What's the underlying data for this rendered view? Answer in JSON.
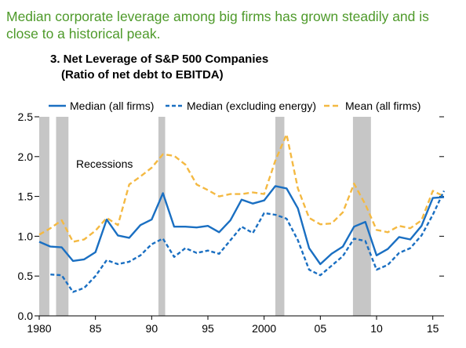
{
  "headline": "Median corporate leverage among big firms has grown steadily and is close to a historical peak.",
  "chart_data": {
    "type": "line",
    "title": "3. Net Leverage of S&P 500 Companies",
    "subtitle": "(Ratio of net debt to EBITDA)",
    "ylim": [
      0.0,
      2.5
    ],
    "y_ticks": [
      "0.0",
      "0.5",
      "1.0",
      "1.5",
      "2.0",
      "2.5"
    ],
    "xlim": [
      1980,
      2016
    ],
    "x_tick_values": [
      1980,
      1985,
      1990,
      1995,
      2000,
      2005,
      2010,
      2015
    ],
    "x_tick_labels": [
      "1980",
      "85",
      "90",
      "95",
      "2000",
      "05",
      "10",
      "15"
    ],
    "legend_position": "top",
    "annotation": "Recessions",
    "recessions": [
      [
        1980.0,
        1980.9
      ],
      [
        1981.5,
        1982.6
      ],
      [
        1990.6,
        1991.2
      ],
      [
        2001.0,
        2001.8
      ],
      [
        2007.9,
        2009.5
      ]
    ],
    "recession_color": "#c6c6c6",
    "series": [
      {
        "name": "Mean (all firms)",
        "color": "#f4b942",
        "dash": "long",
        "x": [
          1980,
          1981,
          1982,
          1983,
          1984,
          1985,
          1986,
          1987,
          1988,
          1989,
          1990,
          1991,
          1992,
          1993,
          1994,
          1995,
          1996,
          1997,
          1998,
          1999,
          2000,
          2001,
          2002,
          2003,
          2004,
          2005,
          2006,
          2007,
          2008,
          2009,
          2010,
          2011,
          2012,
          2013,
          2014,
          2015,
          2016
        ],
        "values": [
          1.02,
          1.1,
          1.2,
          0.93,
          0.96,
          1.07,
          1.23,
          1.14,
          1.65,
          1.75,
          1.86,
          2.03,
          2.01,
          1.9,
          1.65,
          1.58,
          1.5,
          1.53,
          1.53,
          1.55,
          1.53,
          1.95,
          2.28,
          1.6,
          1.23,
          1.15,
          1.16,
          1.3,
          1.66,
          1.4,
          1.08,
          1.05,
          1.13,
          1.1,
          1.2,
          1.57,
          1.5
        ]
      },
      {
        "name": "Median (all firms)",
        "color": "#1a6fc2",
        "dash": "solid",
        "x": [
          1980,
          1981,
          1982,
          1983,
          1984,
          1985,
          1986,
          1987,
          1988,
          1989,
          1990,
          1991,
          1992,
          1993,
          1994,
          1995,
          1996,
          1997,
          1998,
          1999,
          2000,
          2001,
          2002,
          2003,
          2004,
          2005,
          2006,
          2007,
          2008,
          2009,
          2010,
          2011,
          2012,
          2013,
          2014,
          2015,
          2016
        ],
        "values": [
          0.93,
          0.87,
          0.86,
          0.69,
          0.71,
          0.8,
          1.21,
          1.01,
          0.98,
          1.14,
          1.21,
          1.54,
          1.12,
          1.12,
          1.11,
          1.13,
          1.05,
          1.2,
          1.46,
          1.41,
          1.45,
          1.63,
          1.6,
          1.35,
          0.85,
          0.65,
          0.78,
          0.87,
          1.12,
          1.18,
          0.76,
          0.84,
          0.99,
          0.96,
          1.13,
          1.48,
          1.49
        ]
      },
      {
        "name": "Median (excluding energy)",
        "color": "#1a6fc2",
        "dash": "short",
        "x": [
          1981,
          1982,
          1983,
          1984,
          1985,
          1986,
          1987,
          1988,
          1989,
          1990,
          1991,
          1992,
          1993,
          1994,
          1995,
          1996,
          1997,
          1998,
          1999,
          2000,
          2001,
          2002,
          2003,
          2004,
          2005,
          2006,
          2007,
          2008,
          2009,
          2010,
          2011,
          2012,
          2013,
          2014,
          2015,
          2016
        ],
        "values": [
          0.52,
          0.51,
          0.3,
          0.35,
          0.5,
          0.7,
          0.65,
          0.68,
          0.76,
          0.9,
          0.97,
          0.74,
          0.85,
          0.79,
          0.82,
          0.78,
          0.95,
          1.12,
          1.04,
          1.29,
          1.27,
          1.22,
          0.95,
          0.58,
          0.51,
          0.63,
          0.75,
          0.97,
          0.94,
          0.58,
          0.64,
          0.79,
          0.85,
          1.01,
          1.27,
          1.57
        ]
      }
    ]
  }
}
